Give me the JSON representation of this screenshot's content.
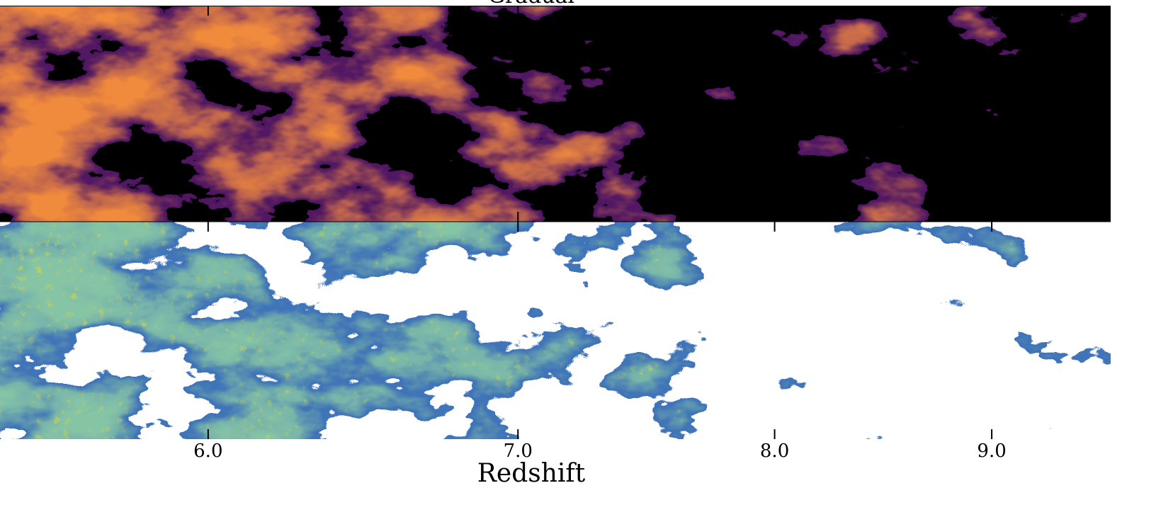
{
  "chart_data": {
    "type": "image-panels",
    "title": "Gradual",
    "x_label": "Redshift",
    "xscale": "comoving",
    "xlim": [
      5.43,
      9.62
    ],
    "xticks": [
      {
        "value": 6,
        "label": "6.0"
      },
      {
        "value": 7,
        "label": "7.0"
      },
      {
        "value": 8,
        "label": "8.0"
      },
      {
        "value": 9,
        "label": "9.0"
      }
    ]
  }
}
